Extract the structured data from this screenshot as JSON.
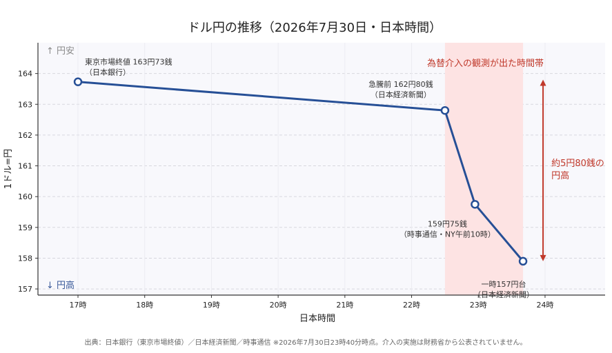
{
  "chart_data": {
    "type": "line",
    "title": "ドル円の推移（2026年7月30日・日本時間）",
    "xlabel": "日本時間",
    "ylabel": "1ドル=円",
    "xlim": [
      16.4,
      24.9
    ],
    "ylim": [
      156.8,
      165.0
    ],
    "grid": true,
    "x_ticks": [
      17,
      18,
      19,
      20,
      21,
      22,
      23,
      24
    ],
    "x_tick_labels": [
      "17時",
      "18時",
      "19時",
      "20時",
      "21時",
      "22時",
      "23時",
      "24時"
    ],
    "y_ticks": [
      157,
      158,
      159,
      160,
      161,
      162,
      163,
      164
    ],
    "y_tick_labels": [
      "157",
      "158",
      "159",
      "160",
      "161",
      "162",
      "163",
      "164"
    ],
    "series": [
      {
        "x": [
          17.0,
          22.5,
          22.95,
          23.67
        ],
        "y": [
          163.73,
          162.8,
          159.75,
          157.9
        ],
        "color": "#264f96"
      }
    ],
    "point_labels": [
      [
        "東京市場終値 163円73銭",
        "（日本銀行）"
      ],
      [
        "急騰前 162円80銭",
        "（日本経済新聞）"
      ],
      [
        "159円75銭",
        "（時事通信・NY午前10時）"
      ],
      [
        "一時157円台",
        "（日本経済新聞）"
      ]
    ],
    "highlight": {
      "x_from": 22.5,
      "x_to": 23.67,
      "label": "為替介入の観測が出た時間帯",
      "color": "#fde3e3"
    },
    "range_annotation": {
      "from": 163.8,
      "to": 157.9,
      "label_lines": [
        "約5円80銭の",
        "円高"
      ],
      "color": "#c0392b"
    },
    "corner_labels": {
      "top": "↑ 円安",
      "bottom": "↓ 円高"
    },
    "source_note": "出典：日本銀行（東京市場終値）／日本経済新聞／時事通信 ※2026年7月30日23時40分時点。介入の実施は財務省から公表されていません。"
  }
}
